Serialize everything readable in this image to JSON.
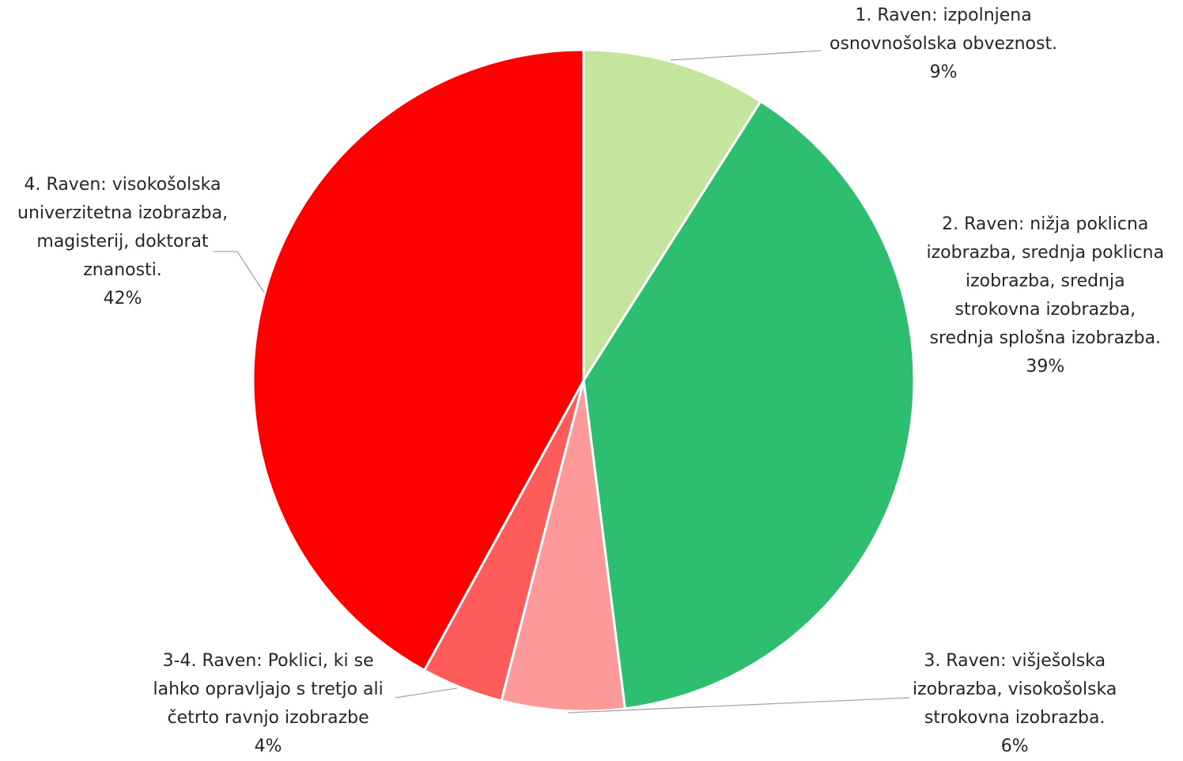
{
  "chart_data": {
    "type": "pie",
    "title": "",
    "start_angle_deg": 0,
    "direction": "clockwise",
    "slices": [
      {
        "lines": [
          "1. Raven: izpolnjena",
          "osnovnošolska  obveznost."
        ],
        "value": 9,
        "pct_label": "9%",
        "color": "#c5e59e"
      },
      {
        "lines": [
          "2. Raven: nižja poklicna",
          "izobrazba, srednja poklicna",
          "izobrazba, srednja",
          "strokovna izobrazba,",
          "srednja splošna izobrazba."
        ],
        "value": 39,
        "pct_label": "39%",
        "color": "#2ebe6f"
      },
      {
        "lines": [
          "3. Raven: višješolska",
          "izobrazba, visokošolska",
          "strokovna izobrazba."
        ],
        "value": 6,
        "pct_label": "6%",
        "color": "#fd9999"
      },
      {
        "lines": [
          "3-4. Raven: Poklici, ki se",
          "lahko opravljajo s tretjo ali",
          "četrto ravnjo izobrazbe"
        ],
        "value": 4,
        "pct_label": "4%",
        "color": "#fe5b5b"
      },
      {
        "lines": [
          "4. Raven: visokošolska",
          "univerzitetna  izobrazba,",
          "magisterij, doktorat",
          "znanosti."
        ],
        "value": 42,
        "pct_label": "42%",
        "color": "#fe0000"
      }
    ],
    "legend": "none",
    "leader_line_color": "#a6a6a6",
    "slice_border_color": "#ffffff"
  }
}
